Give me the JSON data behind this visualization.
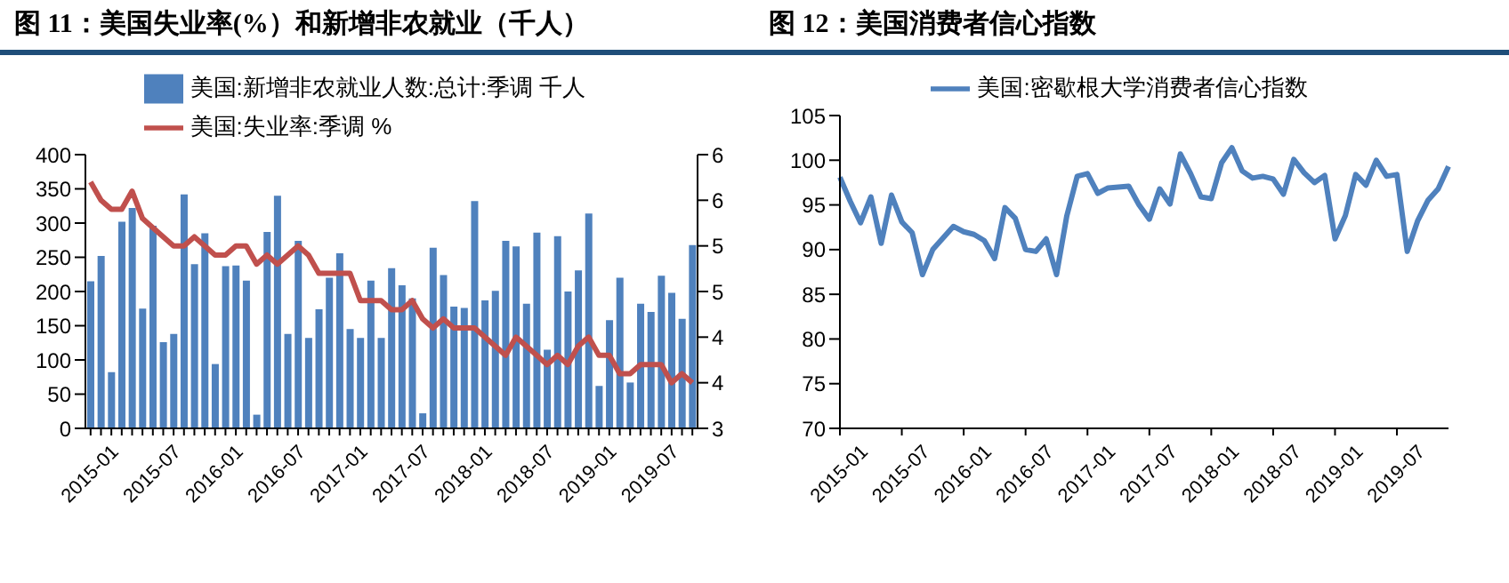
{
  "chart_data": [
    {
      "type": "bar",
      "title": "图 11：美国失业率(%）和新增非农就业（千人）",
      "categories": [
        "2015-01",
        null,
        null,
        null,
        null,
        null,
        "2015-07",
        null,
        null,
        null,
        null,
        null,
        "2016-01",
        null,
        null,
        null,
        null,
        null,
        "2016-07",
        null,
        null,
        null,
        null,
        null,
        "2017-01",
        null,
        null,
        null,
        null,
        null,
        "2017-07",
        null,
        null,
        null,
        null,
        null,
        "2018-01",
        null,
        null,
        null,
        null,
        null,
        "2018-07",
        null,
        null,
        null,
        null,
        null,
        "2019-01",
        null,
        null,
        null,
        null,
        null,
        "2019-07",
        null,
        null,
        null,
        null
      ],
      "series": [
        {
          "name": "美国:新增非农就业人数:总计:季调 千人",
          "color": "#4f81bd",
          "values": [
            215,
            252,
            82,
            302,
            322,
            175,
            296,
            126,
            138,
            342,
            240,
            285,
            94,
            237,
            238,
            216,
            20,
            287,
            340,
            138,
            274,
            132,
            174,
            220,
            256,
            145,
            132,
            216,
            132,
            234,
            209,
            190,
            22,
            264,
            224,
            178,
            176,
            332,
            187,
            201,
            274,
            266,
            182,
            286,
            115,
            281,
            200,
            231,
            314,
            62,
            158,
            220,
            67,
            182,
            170,
            223,
            198,
            160,
            268
          ]
        },
        {
          "name": "美国:失业率:季调 %",
          "type": "line",
          "axis": "y2",
          "color": "#c0504d",
          "values": [
            5.7,
            5.5,
            5.4,
            5.4,
            5.6,
            5.3,
            5.2,
            5.1,
            5.0,
            5.0,
            5.1,
            5.0,
            4.9,
            4.9,
            5.0,
            5.0,
            4.8,
            4.9,
            4.8,
            4.9,
            5.0,
            4.9,
            4.7,
            4.7,
            4.7,
            4.7,
            4.4,
            4.4,
            4.4,
            4.3,
            4.3,
            4.4,
            4.2,
            4.1,
            4.2,
            4.1,
            4.1,
            4.1,
            4.0,
            3.9,
            3.8,
            4.0,
            3.9,
            3.8,
            3.7,
            3.8,
            3.7,
            3.9,
            4.0,
            3.8,
            3.8,
            3.6,
            3.6,
            3.7,
            3.7,
            3.7,
            3.5,
            3.6,
            3.5
          ]
        }
      ],
      "ylim": [
        0,
        400
      ],
      "yticks": [
        0,
        50,
        100,
        150,
        200,
        250,
        300,
        350,
        400
      ],
      "y2lim": [
        3,
        6
      ],
      "y2ticks": [
        3,
        {
          "value": 3.5,
          "label": "4"
        },
        4,
        {
          "value": 4.5,
          "label": "5"
        },
        5,
        {
          "value": 5.5,
          "label": "6"
        },
        6
      ],
      "legend": "top",
      "grid": false
    },
    {
      "type": "line",
      "title": "图 12：美国消费者信心指数",
      "categories": [
        "2015-01",
        null,
        null,
        null,
        null,
        null,
        "2015-07",
        null,
        null,
        null,
        null,
        null,
        "2016-01",
        null,
        null,
        null,
        null,
        null,
        "2016-07",
        null,
        null,
        null,
        null,
        null,
        "2017-01",
        null,
        null,
        null,
        null,
        null,
        "2017-07",
        null,
        null,
        null,
        null,
        null,
        "2018-01",
        null,
        null,
        null,
        null,
        null,
        "2018-07",
        null,
        null,
        null,
        null,
        null,
        "2019-01",
        null,
        null,
        null,
        null,
        null,
        "2019-07",
        null,
        null,
        null,
        null,
        null
      ],
      "series": [
        {
          "name": "美国:密歇根大学消费者信心指数",
          "color": "#4f81bd",
          "values": [
            98.1,
            95.4,
            93.0,
            95.9,
            90.7,
            96.1,
            93.1,
            91.9,
            87.2,
            90.0,
            91.3,
            92.6,
            92.0,
            91.7,
            91.0,
            89.0,
            94.7,
            93.5,
            90.0,
            89.8,
            91.2,
            87.2,
            93.8,
            98.2,
            98.5,
            96.3,
            96.9,
            97.0,
            97.1,
            95.0,
            93.4,
            96.8,
            95.1,
            100.7,
            98.5,
            95.9,
            95.7,
            99.7,
            101.4,
            98.8,
            98.0,
            98.2,
            97.9,
            96.2,
            100.1,
            98.6,
            97.5,
            98.3,
            91.2,
            93.8,
            98.4,
            97.2,
            100.0,
            98.2,
            98.4,
            89.8,
            93.2,
            95.5,
            96.8,
            99.3
          ]
        }
      ],
      "ylim": [
        70,
        105
      ],
      "yticks": [
        70,
        75,
        80,
        85,
        90,
        95,
        100,
        105
      ],
      "legend": "top",
      "grid": false
    }
  ]
}
